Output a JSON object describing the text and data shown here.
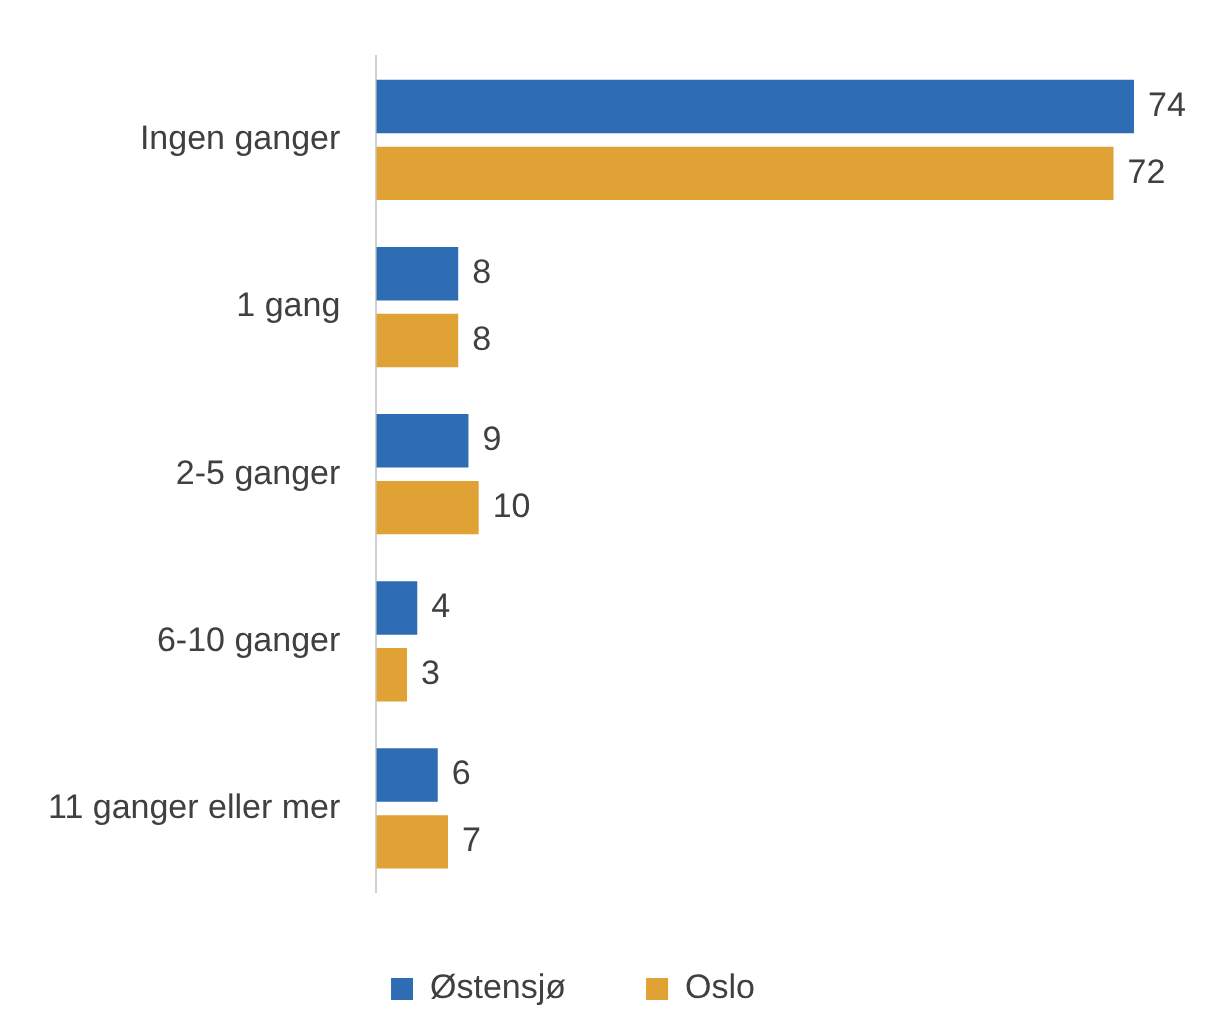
{
  "chart_data": {
    "type": "bar",
    "orientation": "horizontal",
    "categories": [
      "Ingen ganger",
      "1 gang",
      "2-5 ganger",
      "6-10 ganger",
      "11 ganger eller mer"
    ],
    "series": [
      {
        "name": "Østensjø",
        "color": "#2e6db4",
        "values": [
          74,
          8,
          9,
          4,
          6
        ]
      },
      {
        "name": "Oslo",
        "color": "#e0a135",
        "values": [
          72,
          8,
          10,
          3,
          7
        ]
      }
    ],
    "data_labels": true,
    "legend": "bottom"
  }
}
